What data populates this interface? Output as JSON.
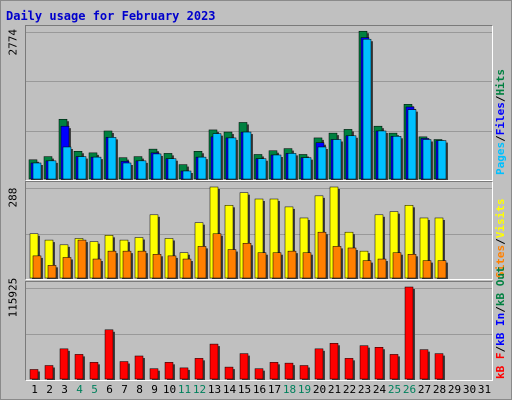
{
  "title": "Daily usage for February 2023",
  "colors": {
    "hits": "#008040",
    "files": "#0000ff",
    "pages": "#00c0ff",
    "visits": "#ffff00",
    "sites": "#ff8000",
    "kb_f": "#ff0000",
    "kb_in": "#0000ff",
    "kb_out": "#008040",
    "weekend": "#00805c",
    "weekday": "#000000",
    "grid": "#999999",
    "background": "#c0c0c0"
  },
  "chart_data": [
    {
      "type": "bar",
      "name": "hits-files-pages",
      "ymax_label": "2774",
      "ylim": [
        0,
        2774
      ],
      "legend": {
        "pages": "Pages",
        "sep1": "/",
        "files": "Files",
        "sep2": "/",
        "hits": "Hits"
      },
      "x": [
        1,
        2,
        3,
        4,
        5,
        6,
        7,
        8,
        9,
        10,
        11,
        12,
        13,
        14,
        15,
        16,
        17,
        18,
        19,
        20,
        21,
        22,
        23,
        24,
        25,
        26,
        27,
        28,
        29,
        30,
        31
      ],
      "series": [
        {
          "name": "Hits",
          "values": [
            360,
            420,
            1120,
            520,
            490,
            900,
            400,
            420,
            560,
            480,
            270,
            520,
            920,
            880,
            1060,
            460,
            530,
            570,
            460,
            770,
            860,
            930,
            2770,
            990,
            860,
            1400,
            790,
            740,
            null,
            null,
            null
          ]
        },
        {
          "name": "Files",
          "values": [
            300,
            340,
            990,
            420,
            410,
            780,
            330,
            340,
            490,
            380,
            150,
            410,
            790,
            770,
            880,
            380,
            450,
            480,
            400,
            680,
            740,
            810,
            2650,
            900,
            800,
            1350,
            760,
            720,
            null,
            null,
            null
          ]
        },
        {
          "name": "Pages",
          "values": [
            300,
            340,
            600,
            420,
            410,
            780,
            300,
            340,
            470,
            380,
            150,
            410,
            850,
            770,
            880,
            380,
            450,
            480,
            400,
            600,
            740,
            810,
            2620,
            900,
            800,
            1300,
            740,
            720,
            null,
            null,
            null
          ]
        }
      ]
    },
    {
      "type": "bar",
      "name": "visits-sites",
      "ymax_label": "288",
      "ylim": [
        0,
        288
      ],
      "legend": {
        "sites": "Sites",
        "sep1": "/",
        "visits": "Visits"
      },
      "x": [
        1,
        2,
        3,
        4,
        5,
        6,
        7,
        8,
        9,
        10,
        11,
        12,
        13,
        14,
        15,
        16,
        17,
        18,
        19,
        20,
        21,
        22,
        23,
        24,
        25,
        26,
        27,
        28,
        29,
        30,
        31
      ],
      "series": [
        {
          "name": "Visits",
          "values": [
            140,
            120,
            105,
            125,
            115,
            135,
            120,
            128,
            200,
            125,
            80,
            175,
            288,
            230,
            270,
            250,
            250,
            225,
            190,
            260,
            288,
            145,
            85,
            200,
            210,
            230,
            190,
            190,
            null,
            null,
            null
          ]
        },
        {
          "name": "Sites",
          "values": [
            70,
            40,
            65,
            120,
            60,
            85,
            85,
            85,
            75,
            70,
            60,
            100,
            140,
            90,
            110,
            80,
            80,
            85,
            80,
            145,
            100,
            95,
            55,
            60,
            80,
            75,
            55,
            55,
            null,
            null,
            null
          ]
        }
      ]
    },
    {
      "type": "bar",
      "name": "kb",
      "ymax_label": "115925",
      "ylim": [
        0,
        115925
      ],
      "legend": {
        "kb_f": "kB F",
        "sep1": "/",
        "kb_in": "kB In",
        "sep2": "/",
        "kb_out": "kB Out"
      },
      "x": [
        1,
        2,
        3,
        4,
        5,
        6,
        7,
        8,
        9,
        10,
        11,
        12,
        13,
        14,
        15,
        16,
        17,
        18,
        19,
        20,
        21,
        22,
        23,
        24,
        25,
        26,
        27,
        28,
        29,
        30,
        31
      ],
      "series": [
        {
          "name": "kB F",
          "values": [
            12000,
            17000,
            38000,
            31000,
            21000,
            62000,
            22000,
            29000,
            13000,
            21000,
            14000,
            26000,
            44000,
            15000,
            32000,
            13000,
            21000,
            20000,
            17000,
            38000,
            45000,
            26000,
            42000,
            40000,
            31000,
            115925,
            37000,
            32000,
            null,
            null,
            null
          ]
        }
      ]
    }
  ],
  "x_labels": [
    "1",
    "2",
    "3",
    "4",
    "5",
    "6",
    "7",
    "8",
    "9",
    "10",
    "11",
    "12",
    "13",
    "14",
    "15",
    "16",
    "17",
    "18",
    "19",
    "20",
    "21",
    "22",
    "23",
    "24",
    "25",
    "26",
    "27",
    "28",
    "29",
    "30",
    "31"
  ],
  "weekend_days": [
    4,
    5,
    11,
    12,
    18,
    19,
    25,
    26
  ]
}
